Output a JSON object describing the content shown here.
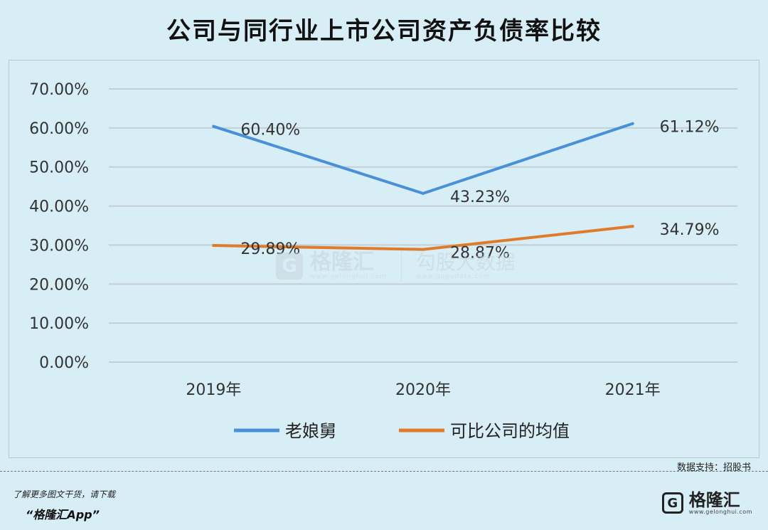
{
  "title": "公司与同行业上市公司资产负债率比较",
  "chart_data": {
    "type": "line",
    "title": "公司与同行业上市公司资产负债率比较",
    "categories": [
      "2019年",
      "2020年",
      "2021年"
    ],
    "series": [
      {
        "name": "老娘舅",
        "values": [
          60.4,
          43.23,
          61.12
        ],
        "labels": [
          "60.40%",
          "43.23%",
          "61.12%"
        ],
        "color": "#4a90d9"
      },
      {
        "name": "可比公司的均值",
        "values": [
          29.89,
          28.87,
          34.79
        ],
        "labels": [
          "29.89%",
          "28.87%",
          "34.79%"
        ],
        "color": "#e07b2a"
      }
    ],
    "ylim": [
      0,
      70
    ],
    "yticks": [
      "0.00%",
      "10.00%",
      "20.00%",
      "30.00%",
      "40.00%",
      "50.00%",
      "60.00%",
      "70.00%"
    ],
    "ytick_values": [
      0,
      10,
      20,
      30,
      40,
      50,
      60,
      70
    ],
    "grid": true,
    "legend": "bottom"
  },
  "source": "数据支持：招股书",
  "promo": {
    "line1": "了解更多图文干货，请下载",
    "line2": "“格隆汇App”"
  },
  "brand": {
    "name": "格隆汇",
    "url": "www.gelonghui.com",
    "logo_glyph": "G"
  },
  "watermark": {
    "brand": "格隆汇",
    "url": "www.gelonghui.com",
    "brand2": "勾股大数据",
    "url2": "www.gogudata.com",
    "logo_glyph": "G"
  }
}
